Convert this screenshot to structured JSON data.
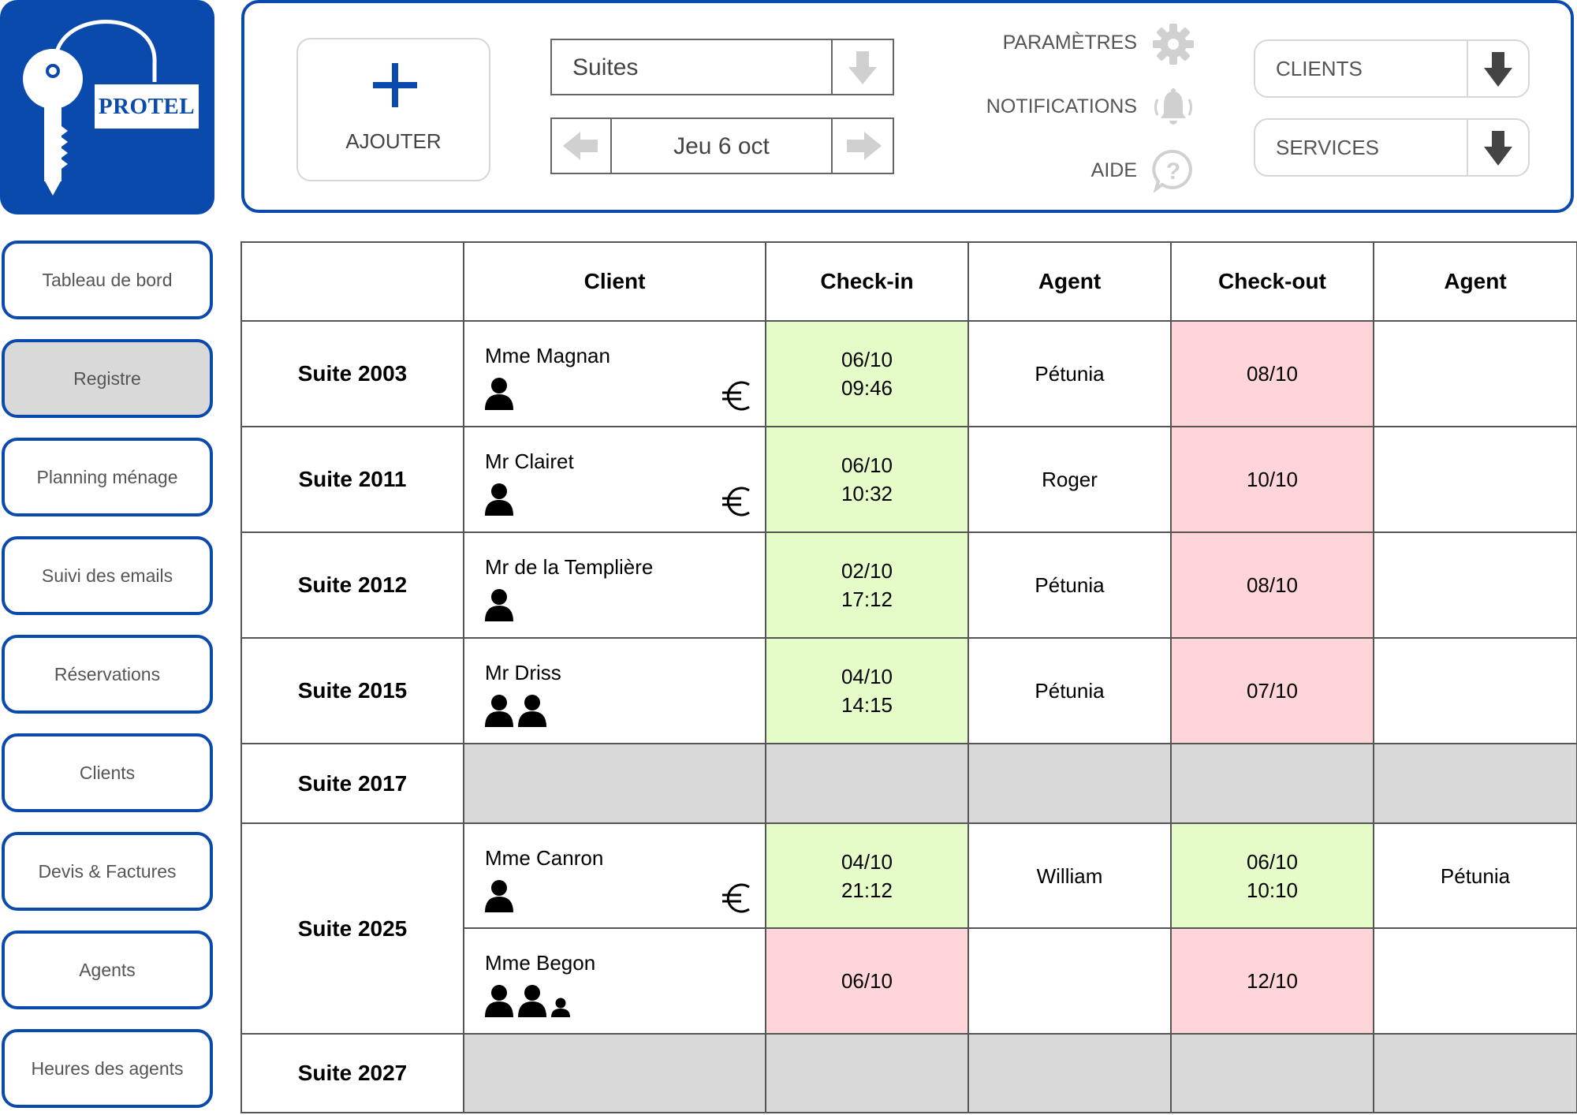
{
  "app": {
    "logo_text": "PROTEL",
    "brand_color": "#0a4aad"
  },
  "toolbar": {
    "add_label": "AJOUTER",
    "category_select": "Suites",
    "date_label": "Jeu 6 oct",
    "settings_label": "PARAMÈTRES",
    "notifications_label": "NOTIFICATIONS",
    "help_label": "AIDE",
    "clients_label": "CLIENTS",
    "services_label": "SERVICES"
  },
  "sidebar": {
    "items": [
      {
        "label": "Tableau de bord",
        "active": false
      },
      {
        "label": "Registre",
        "active": true
      },
      {
        "label": "Planning ménage",
        "active": false
      },
      {
        "label": "Suivi des emails",
        "active": false
      },
      {
        "label": "Réservations",
        "active": false
      },
      {
        "label": "Clients",
        "active": false
      },
      {
        "label": "Devis & Factures",
        "active": false
      },
      {
        "label": "Agents",
        "active": false
      },
      {
        "label": "Heures des agents",
        "active": false
      }
    ]
  },
  "table": {
    "headers": {
      "room": "",
      "client": "Client",
      "checkin": "Check-in",
      "checkin_agent": "Agent",
      "checkout": "Check-out",
      "checkout_agent": "Agent"
    },
    "status_colors": {
      "done": "#e6fcc8",
      "pending": "#ffd5d9",
      "vacant": "#d9d9d9"
    },
    "suites": {
      "s2003": "Suite 2003",
      "s2011": "Suite 2011",
      "s2012": "Suite 2012",
      "s2015": "Suite 2015",
      "s2017": "Suite 2017",
      "s2025": "Suite 2025",
      "s2027": "Suite 2027"
    },
    "rows": {
      "r2003": {
        "client": "Mme Magnan",
        "adults": 1,
        "children": 0,
        "paid_icon": "euro-icon",
        "checkin_date": "06/10",
        "checkin_time": "09:46",
        "checkin_agent": "Pétunia",
        "checkout_date": "08/10",
        "checkout_time": "",
        "checkout_agent": ""
      },
      "r2011": {
        "client": "Mr Clairet",
        "adults": 1,
        "children": 0,
        "paid_icon": "euro-icon",
        "checkin_date": "06/10",
        "checkin_time": "10:32",
        "checkin_agent": "Roger",
        "checkout_date": "10/10",
        "checkout_time": "",
        "checkout_agent": ""
      },
      "r2012": {
        "client": "Mr de la Templière",
        "adults": 1,
        "children": 0,
        "checkin_date": "02/10",
        "checkin_time": "17:12",
        "checkin_agent": "Pétunia",
        "checkout_date": "08/10",
        "checkout_time": "",
        "checkout_agent": ""
      },
      "r2015": {
        "client": "Mr Driss",
        "adults": 2,
        "children": 0,
        "checkin_date": "04/10",
        "checkin_time": "14:15",
        "checkin_agent": "Pétunia",
        "checkout_date": "07/10",
        "checkout_time": "",
        "checkout_agent": ""
      },
      "r2025a": {
        "client": "Mme Canron",
        "adults": 1,
        "children": 0,
        "paid_icon": "euro-icon",
        "checkin_date": "04/10",
        "checkin_time": "21:12",
        "checkin_agent": "William",
        "checkout_date": "06/10",
        "checkout_time": "10:10",
        "checkout_agent": "Pétunia"
      },
      "r2025b": {
        "client": "Mme Begon",
        "adults": 2,
        "children": 1,
        "checkin_date": "06/10",
        "checkin_time": "",
        "checkin_agent": "",
        "checkout_date": "12/10",
        "checkout_time": "",
        "checkout_agent": ""
      }
    }
  }
}
